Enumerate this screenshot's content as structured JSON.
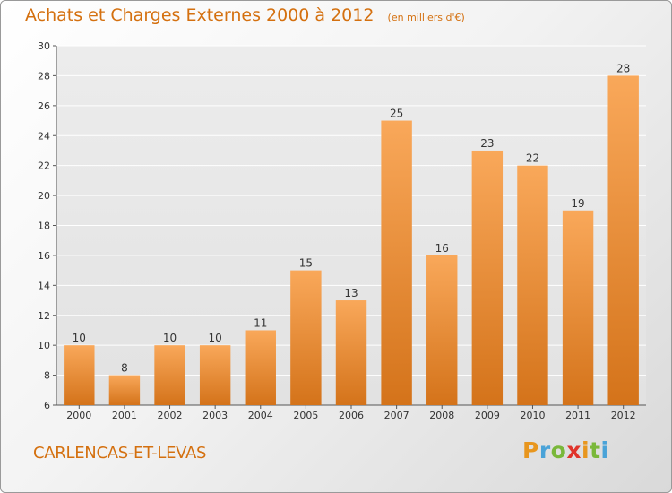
{
  "header": {
    "title": "Achats et Charges Externes 2000 à 2012",
    "unit": "(en milliers d'€)"
  },
  "footer": {
    "commune": "CARLENCAS-ET-LEVAS",
    "logo_text": "Proxiti"
  },
  "colors": {
    "accent": "#d4700f",
    "bar_light": "#f9a85a",
    "bar_dark": "#d4731a"
  },
  "chart_data": {
    "type": "bar",
    "title": "Achats et Charges Externes 2000 à 2012",
    "subtitle": "(en milliers d'€)",
    "categories": [
      "2000",
      "2001",
      "2002",
      "2003",
      "2004",
      "2005",
      "2006",
      "2007",
      "2008",
      "2009",
      "2010",
      "2011",
      "2012"
    ],
    "values": [
      10,
      8,
      10,
      10,
      11,
      15,
      13,
      25,
      16,
      23,
      22,
      19,
      28
    ],
    "ylim": [
      6,
      30
    ],
    "yticks": [
      6,
      8,
      10,
      12,
      14,
      16,
      18,
      20,
      22,
      24,
      26,
      28,
      30
    ],
    "grid": true,
    "legend": "none"
  }
}
